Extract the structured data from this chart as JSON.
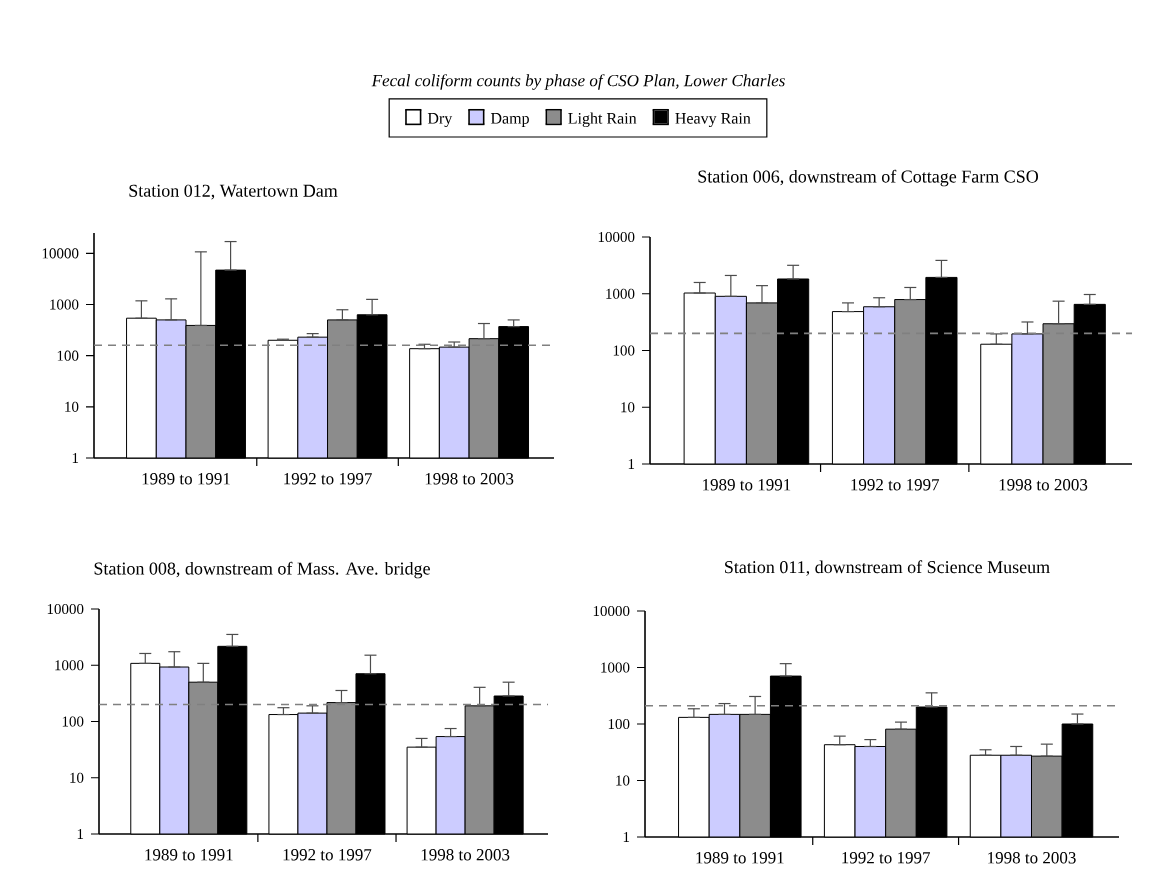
{
  "chart_data": [
    {
      "type": "other",
      "title": "Fecal coliform counts by phase of CSO Plan, Lower Charles"
    },
    {
      "type": "bar",
      "title": "Station 012, Watertown Dam",
      "categories": [
        "1989 to 1991",
        "1992 to 1997",
        "1998 to 2003"
      ],
      "log": true,
      "legend": "top",
      "ylim": [
        1,
        25000
      ],
      "yticks": [
        1,
        10,
        100,
        1000,
        10000
      ],
      "series": [
        {
          "name": "Dry",
          "color": "#ffffff",
          "values": [
            540,
            200,
            137
          ],
          "errors": [
            [
              540,
              1180
            ],
            [
              200,
              210
            ],
            [
              137,
              167
            ]
          ]
        },
        {
          "name": "Damp",
          "color": "#ccccff",
          "values": [
            500,
            230,
            147
          ],
          "errors": [
            [
              500,
              1290
            ],
            [
              230,
              270
            ],
            [
              147,
              185
            ]
          ]
        },
        {
          "name": "Light Rain",
          "color": "#8c8c8c",
          "values": [
            390,
            500,
            215
          ],
          "errors": [
            [
              390,
              10700
            ],
            [
              500,
              790
            ],
            [
              215,
              425
            ]
          ]
        },
        {
          "name": "Heavy Rain",
          "color": "#000000",
          "values": [
            4700,
            630,
            370
          ],
          "errors": [
            [
              4700,
              17000
            ],
            [
              630,
              1260
            ],
            [
              370,
              500
            ]
          ]
        }
      ],
      "ref_lines": [
        {
          "axis": "y",
          "value": 160,
          "color": "#808080",
          "line_style": "dashed"
        }
      ]
    },
    {
      "type": "bar",
      "title": "Station 006, downstream of Cottage Farm CSO",
      "categories": [
        "1989 to 1991",
        "1992 to 1997",
        "1998 to 2003"
      ],
      "log": true,
      "ylim": [
        1,
        10000
      ],
      "yticks": [
        1,
        10,
        100,
        1000,
        10000
      ],
      "series": [
        {
          "color": "#ffffff",
          "values": [
            1030,
            485,
            129
          ],
          "errors": [
            [
              1030,
              1580
            ],
            [
              485,
              690
            ],
            [
              129,
              196
            ]
          ]
        },
        {
          "color": "#ccccff",
          "values": [
            900,
            590,
            196
          ],
          "errors": [
            [
              900,
              2100
            ],
            [
              590,
              850
            ],
            [
              196,
              318
            ]
          ]
        },
        {
          "color": "#8c8c8c",
          "values": [
            690,
            790,
            296
          ],
          "errors": [
            [
              690,
              1390
            ],
            [
              790,
              1290
            ],
            [
              296,
              740
            ]
          ]
        },
        {
          "color": "#000000",
          "values": [
            1820,
            1940,
            650
          ],
          "errors": [
            [
              1820,
              3170
            ],
            [
              1940,
              3870
            ],
            [
              650,
              970
            ]
          ]
        }
      ],
      "ref_lines": [
        {
          "axis": "y",
          "value": 200,
          "color": "#808080",
          "line_style": "dashed"
        }
      ]
    },
    {
      "type": "bar",
      "title": "Station 008, downstream of Mass. Ave. bridge",
      "categories": [
        "1989 to 1991",
        "1992 to 1997",
        "1998 to 2003"
      ],
      "log": true,
      "ylim": [
        1,
        10000
      ],
      "yticks": [
        1,
        10,
        100,
        1000,
        10000
      ],
      "series": [
        {
          "color": "#ffffff",
          "values": [
            1080,
            133,
            35
          ],
          "errors": [
            [
              1080,
              1620
            ],
            [
              133,
              176
            ],
            [
              35,
              50
            ]
          ]
        },
        {
          "color": "#ccccff",
          "values": [
            930,
            141,
            54
          ],
          "errors": [
            [
              930,
              1740
            ],
            [
              141,
              190
            ],
            [
              54,
              75
            ]
          ]
        },
        {
          "color": "#8c8c8c",
          "values": [
            500,
            217,
            190
          ],
          "errors": [
            [
              500,
              1080
            ],
            [
              217,
              356
            ],
            [
              190,
              405
            ]
          ]
        },
        {
          "color": "#000000",
          "values": [
            2170,
            707,
            284
          ],
          "errors": [
            [
              2170,
              3530
            ],
            [
              707,
              1510
            ],
            [
              284,
              500
            ]
          ]
        }
      ],
      "ref_lines": [
        {
          "axis": "y",
          "value": 200,
          "color": "#808080",
          "line_style": "dashed"
        }
      ]
    },
    {
      "type": "bar",
      "title": "Station 011, downstream of Science Museum",
      "categories": [
        "1989 to 1991",
        "1992 to 1997",
        "1998 to 2003"
      ],
      "log": true,
      "ylim": [
        1,
        10000
      ],
      "yticks": [
        1,
        10,
        100,
        1000,
        10000
      ],
      "series": [
        {
          "color": "#ffffff",
          "values": [
            131,
            43,
            28
          ],
          "errors": [
            [
              131,
              186
            ],
            [
              43,
              61
            ],
            [
              28,
              35
            ]
          ]
        },
        {
          "color": "#ccccff",
          "values": [
            148,
            40,
            28
          ],
          "errors": [
            [
              148,
              230
            ],
            [
              40,
              53
            ],
            [
              28,
              40
            ]
          ]
        },
        {
          "color": "#8c8c8c",
          "values": [
            148,
            81,
            27
          ],
          "errors": [
            [
              148,
              307
            ],
            [
              81,
              108
            ],
            [
              27,
              44
            ]
          ]
        },
        {
          "color": "#000000",
          "values": [
            705,
            200,
            100
          ],
          "errors": [
            [
              705,
              1170
            ],
            [
              200,
              356
            ],
            [
              100,
              150
            ]
          ]
        }
      ],
      "ref_lines": [
        {
          "axis": "y",
          "value": 210,
          "color": "#808080",
          "line_style": "dashed"
        }
      ]
    }
  ]
}
